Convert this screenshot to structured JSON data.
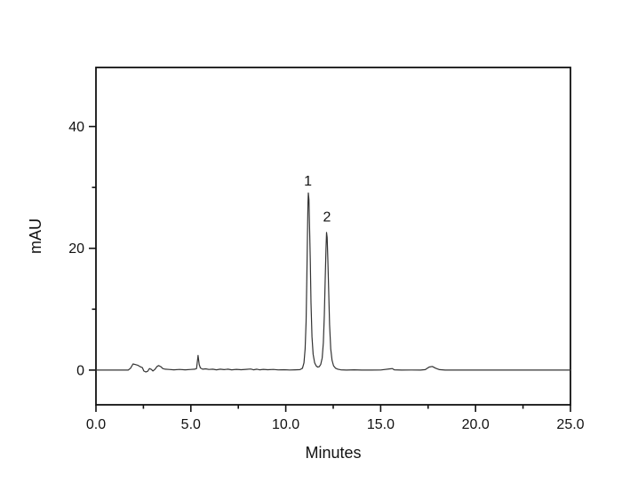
{
  "chart_data": {
    "type": "line",
    "title": "",
    "xlabel": "Minutes",
    "ylabel": "mAU",
    "xlim": [
      0,
      25
    ],
    "ylim": [
      -5.7,
      49.7
    ],
    "grid": false,
    "legend": false,
    "line_color": "#333333",
    "frame_color": "#111111",
    "background_color": "#ffffff",
    "x_major_ticks": [
      {
        "value": 0,
        "label": "0.0"
      },
      {
        "value": 5,
        "label": "5.0"
      },
      {
        "value": 10,
        "label": "10.0"
      },
      {
        "value": 15,
        "label": "15.0"
      },
      {
        "value": 20,
        "label": "20.0"
      },
      {
        "value": 25,
        "label": "25.0"
      }
    ],
    "x_minor_ticks": [
      2.5,
      7.5,
      12.5,
      17.5,
      22.5
    ],
    "y_major_ticks": [
      {
        "value": 0,
        "label": "0"
      },
      {
        "value": 20,
        "label": "20"
      },
      {
        "value": 40,
        "label": "40"
      }
    ],
    "y_minor_ticks": [
      10,
      30
    ],
    "peaks": [
      {
        "label": "1",
        "retention_time_min": 11.2,
        "height_mau": 29.1
      },
      {
        "label": "2",
        "retention_time_min": 12.15,
        "height_mau": 22.6
      }
    ],
    "peak_annotations": [
      {
        "label": "1",
        "x": 11.17,
        "y": 31.2
      },
      {
        "label": "2",
        "x": 12.17,
        "y": 25.3
      }
    ],
    "trace": [
      [
        0,
        0
      ],
      [
        0.5,
        0
      ],
      [
        1.0,
        0
      ],
      [
        1.4,
        0
      ],
      [
        1.7,
        0
      ],
      [
        1.82,
        0.3
      ],
      [
        1.95,
        1.0
      ],
      [
        2.08,
        0.9
      ],
      [
        2.2,
        0.8
      ],
      [
        2.33,
        0.55
      ],
      [
        2.45,
        0.4
      ],
      [
        2.52,
        -0.15
      ],
      [
        2.62,
        -0.3
      ],
      [
        2.72,
        -0.2
      ],
      [
        2.82,
        0.25
      ],
      [
        2.92,
        0.1
      ],
      [
        3.0,
        -0.15
      ],
      [
        3.1,
        0.1
      ],
      [
        3.22,
        0.6
      ],
      [
        3.3,
        0.75
      ],
      [
        3.42,
        0.55
      ],
      [
        3.52,
        0.25
      ],
      [
        3.65,
        0.15
      ],
      [
        3.85,
        0.1
      ],
      [
        4.1,
        0.05
      ],
      [
        4.4,
        0.1
      ],
      [
        4.7,
        0.05
      ],
      [
        5.0,
        0.1
      ],
      [
        5.2,
        0.15
      ],
      [
        5.3,
        0.25
      ],
      [
        5.38,
        2.4
      ],
      [
        5.44,
        0.9
      ],
      [
        5.5,
        0.35
      ],
      [
        5.62,
        0.15
      ],
      [
        5.78,
        0.2
      ],
      [
        5.95,
        0.1
      ],
      [
        6.15,
        0.15
      ],
      [
        6.35,
        0.05
      ],
      [
        6.55,
        0.15
      ],
      [
        6.75,
        0.08
      ],
      [
        6.95,
        0.15
      ],
      [
        7.15,
        0.05
      ],
      [
        7.4,
        0.12
      ],
      [
        7.65,
        0.06
      ],
      [
        7.9,
        0.12
      ],
      [
        8.15,
        0.18
      ],
      [
        8.3,
        0.05
      ],
      [
        8.48,
        0.15
      ],
      [
        8.62,
        0.05
      ],
      [
        8.82,
        0.12
      ],
      [
        9.05,
        0.06
      ],
      [
        9.35,
        0.1
      ],
      [
        9.6,
        0.03
      ],
      [
        9.9,
        0.06
      ],
      [
        10.2,
        0.02
      ],
      [
        10.5,
        0.04
      ],
      [
        10.75,
        0.08
      ],
      [
        10.88,
        0.3
      ],
      [
        10.96,
        1.2
      ],
      [
        11.02,
        3.5
      ],
      [
        11.07,
        8
      ],
      [
        11.11,
        15
      ],
      [
        11.14,
        22
      ],
      [
        11.17,
        27.5
      ],
      [
        11.19,
        29.1
      ],
      [
        11.22,
        28
      ],
      [
        11.25,
        24
      ],
      [
        11.29,
        18
      ],
      [
        11.33,
        11
      ],
      [
        11.38,
        5.5
      ],
      [
        11.44,
        2.6
      ],
      [
        11.52,
        1.2
      ],
      [
        11.6,
        0.7
      ],
      [
        11.68,
        0.5
      ],
      [
        11.76,
        0.55
      ],
      [
        11.84,
        0.9
      ],
      [
        11.92,
        2.0
      ],
      [
        11.98,
        4.5
      ],
      [
        12.03,
        9
      ],
      [
        12.08,
        15
      ],
      [
        12.12,
        20
      ],
      [
        12.15,
        22.6
      ],
      [
        12.18,
        21.8
      ],
      [
        12.22,
        18
      ],
      [
        12.26,
        13
      ],
      [
        12.31,
        7.5
      ],
      [
        12.37,
        3.5
      ],
      [
        12.44,
        1.6
      ],
      [
        12.52,
        0.7
      ],
      [
        12.62,
        0.3
      ],
      [
        12.75,
        0.15
      ],
      [
        12.9,
        0.05
      ],
      [
        13.2,
        0
      ],
      [
        13.6,
        0.04
      ],
      [
        14.0,
        0
      ],
      [
        14.5,
        0
      ],
      [
        15.0,
        0.02
      ],
      [
        15.5,
        0.2
      ],
      [
        15.62,
        0.25
      ],
      [
        15.72,
        0.05
      ],
      [
        16.1,
        0
      ],
      [
        16.6,
        0.02
      ],
      [
        17.1,
        0
      ],
      [
        17.35,
        0.08
      ],
      [
        17.55,
        0.5
      ],
      [
        17.72,
        0.6
      ],
      [
        17.9,
        0.3
      ],
      [
        18.1,
        0.08
      ],
      [
        18.4,
        0
      ],
      [
        19.0,
        0
      ],
      [
        20.0,
        0
      ],
      [
        21.5,
        0
      ],
      [
        23.0,
        0
      ],
      [
        24.0,
        0
      ],
      [
        25.0,
        0
      ]
    ]
  }
}
